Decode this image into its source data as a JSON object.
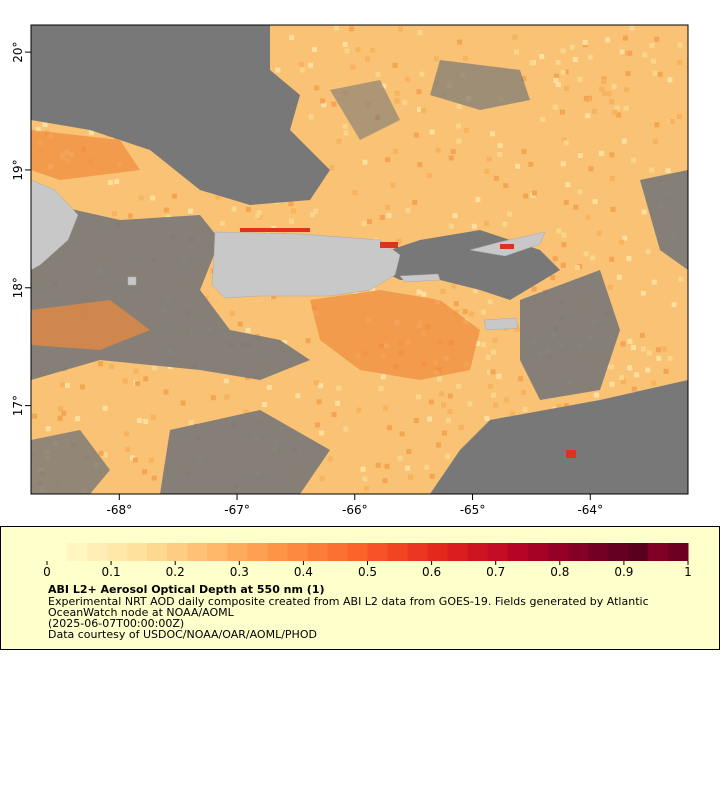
{
  "map": {
    "xlim": [
      -68.75,
      -63.17
    ],
    "ylim": [
      16.25,
      20.23
    ],
    "xticks": [
      {
        "value": -68,
        "label": "-68°"
      },
      {
        "value": -67,
        "label": "-67°"
      },
      {
        "value": -66,
        "label": "-66°"
      },
      {
        "value": -65,
        "label": "-65°"
      },
      {
        "value": -64,
        "label": "-64°"
      }
    ],
    "yticks": [
      {
        "value": 17,
        "label": "17°"
      },
      {
        "value": 18,
        "label": "18°"
      },
      {
        "value": 19,
        "label": "19°"
      },
      {
        "value": 20,
        "label": "20°"
      }
    ]
  },
  "colorbar": {
    "range": [
      0,
      1
    ],
    "ticks": [
      0,
      0.1,
      0.2,
      0.3,
      0.4,
      0.5,
      0.6,
      0.7,
      0.8,
      0.9,
      1
    ],
    "colors": [
      "#ffffcc",
      "#fff6c0",
      "#ffefb4",
      "#ffe8a8",
      "#fee19d",
      "#fed791",
      "#fecc83",
      "#fec175",
      "#feb668",
      "#fdab5d",
      "#fda052",
      "#fd9547",
      "#fc893f",
      "#fc7d38",
      "#fc7131",
      "#fb632b",
      "#f65326",
      "#f14421",
      "#ea361f",
      "#e3281c",
      "#da1d1d",
      "#cf1421",
      "#c30b23",
      "#b60524",
      "#a60226",
      "#950026",
      "#840026",
      "#730024",
      "#660022",
      "#5a001f",
      "#800026",
      "#6d0022"
    ],
    "title": "ABI L2+ Aerosol Optical Depth at 550 nm (1)",
    "lines": [
      "Experimental NRT AOD daily composite created from ABI L2 data from GOES-19. Fields generated by Atlantic",
      "OceanWatch node at NOAA/AOML",
      "(2025-06-07T00:00:00Z)",
      "Data courtesy of USDOC/NOAA/OAR/AOML/PHOD"
    ]
  }
}
